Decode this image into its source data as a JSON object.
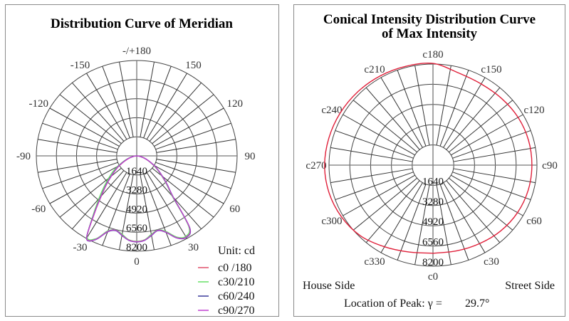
{
  "chart_data": [
    {
      "type": "polar-line",
      "title": "Distribution Curve of  Meridian",
      "unit_label": "Unit: cd",
      "radial_ticks": [
        1640,
        3280,
        4920,
        6560,
        8200
      ],
      "radial_max": 8200,
      "angle_labels": [
        {
          "angle": 180,
          "label": "-/+180"
        },
        {
          "angle": 150,
          "label": "150"
        },
        {
          "angle": 120,
          "label": "120"
        },
        {
          "angle": 90,
          "label": "90"
        },
        {
          "angle": 60,
          "label": "60"
        },
        {
          "angle": 30,
          "label": "30"
        },
        {
          "angle": 0,
          "label": "0"
        },
        {
          "angle": -30,
          "label": "-30"
        },
        {
          "angle": -60,
          "label": "-60"
        },
        {
          "angle": -90,
          "label": "-90"
        },
        {
          "angle": -120,
          "label": "-120"
        },
        {
          "angle": -150,
          "label": "-150"
        }
      ],
      "gamma": [
        -90,
        -80,
        -70,
        -60,
        -55,
        -50,
        -45,
        -40,
        -35,
        -30,
        -25,
        -20,
        -15,
        -10,
        -5,
        0,
        5,
        10,
        15,
        20,
        25,
        30,
        35,
        40,
        45,
        50,
        55,
        60,
        70,
        80,
        90
      ],
      "series": [
        {
          "name": "c0 /180",
          "color": "#e0506a",
          "values": [
            0,
            300,
            800,
            1600,
            2100,
            2700,
            3500,
            4500,
            6000,
            8150,
            7900,
            6900,
            6650,
            6900,
            7250,
            7350,
            7250,
            6900,
            6650,
            6950,
            7750,
            8050,
            7500,
            4600,
            3500,
            2700,
            2100,
            1600,
            800,
            300,
            0
          ]
        },
        {
          "name": "c30/210",
          "color": "#66e066",
          "values": [
            0,
            300,
            900,
            1800,
            2400,
            3000,
            3800,
            4800,
            6200,
            8100,
            7850,
            6850,
            6600,
            6850,
            7250,
            7350,
            7250,
            6850,
            6600,
            6900,
            7700,
            8000,
            7400,
            4500,
            3450,
            2650,
            2050,
            1550,
            800,
            300,
            0
          ]
        },
        {
          "name": "c60/240",
          "color": "#3a3a9a",
          "values": [
            0,
            300,
            850,
            1650,
            2150,
            2750,
            3550,
            4550,
            6050,
            8200,
            7950,
            6950,
            6650,
            6950,
            7300,
            7400,
            7300,
            6950,
            6650,
            7000,
            7800,
            8100,
            7550,
            4650,
            3550,
            2750,
            2150,
            1650,
            850,
            300,
            0
          ]
        },
        {
          "name": "c90/270",
          "color": "#c040d0",
          "values": [
            0,
            300,
            820,
            1620,
            2120,
            2720,
            3520,
            4520,
            6020,
            8180,
            7920,
            6920,
            6620,
            6920,
            7280,
            7380,
            7280,
            6920,
            6620,
            6980,
            7780,
            8080,
            7520,
            4620,
            3520,
            2720,
            2120,
            1620,
            820,
            300,
            0
          ]
        }
      ]
    },
    {
      "type": "polar-line",
      "title_line1": "Conical Intensity Distribution Curve",
      "title_line2": "of  Max Intensity",
      "radial_ticks": [
        1640,
        3280,
        4920,
        6560,
        8200
      ],
      "radial_max": 8200,
      "angle_labels": [
        {
          "angle": 0,
          "label": "c0"
        },
        {
          "angle": 30,
          "label": "c30"
        },
        {
          "angle": 60,
          "label": "c60"
        },
        {
          "angle": 90,
          "label": "c90"
        },
        {
          "angle": 120,
          "label": "c120"
        },
        {
          "angle": 150,
          "label": "c150"
        },
        {
          "angle": 180,
          "label": "c180"
        },
        {
          "angle": 210,
          "label": "c210"
        },
        {
          "angle": 240,
          "label": "c240"
        },
        {
          "angle": 270,
          "label": "c270"
        },
        {
          "angle": 300,
          "label": "c300"
        },
        {
          "angle": 330,
          "label": "c330"
        }
      ],
      "c_angles": [
        0,
        15,
        30,
        45,
        60,
        75,
        90,
        105,
        120,
        135,
        150,
        165,
        180,
        195,
        210,
        225,
        240,
        255,
        270,
        285,
        300,
        315,
        330,
        345,
        360
      ],
      "series": [
        {
          "name": "Max Intensity",
          "color": "#e0203a",
          "values": [
            7150,
            7200,
            7350,
            7550,
            7700,
            7780,
            7800,
            7800,
            7750,
            7650,
            7600,
            7750,
            8250,
            8300,
            8350,
            8400,
            8450,
            8500,
            8550,
            8500,
            8350,
            8100,
            7650,
            7300,
            7150
          ]
        }
      ],
      "house_side_label": "House Side",
      "street_side_label": "Street Side",
      "peak_label": "Location of  Peak:  γ  =",
      "peak_value": "29.7°",
      "peak_color": "#d0103a"
    }
  ]
}
